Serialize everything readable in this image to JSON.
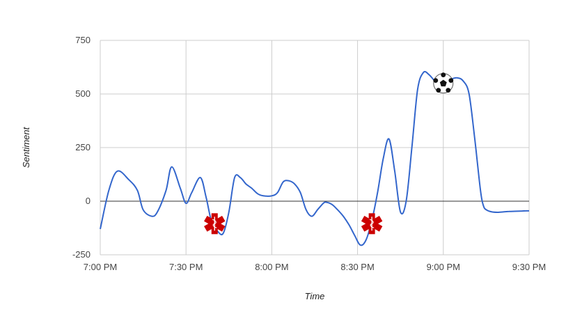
{
  "chart_data": {
    "type": "line",
    "xlabel": "Time",
    "ylabel": "Sentiment",
    "x_tick_labels": [
      "7:00 PM",
      "7:30 PM",
      "8:00 PM",
      "8:30 PM",
      "9:00 PM",
      "9:30 PM"
    ],
    "x_range_minutes": [
      0,
      150
    ],
    "x_tick_minutes": [
      0,
      30,
      60,
      90,
      120,
      150
    ],
    "y_tick_labels": [
      "750",
      "500",
      "250",
      "0",
      "-250"
    ],
    "y_ticks": [
      750,
      500,
      250,
      0,
      -250
    ],
    "ylim": [
      -250,
      750
    ],
    "grid": true,
    "series": [
      {
        "color": "#3366cc",
        "x_minutes": [
          0,
          3,
          6,
          10,
          13,
          15,
          18,
          20,
          23,
          25,
          28,
          30,
          32,
          35,
          37,
          39,
          41,
          43,
          45,
          47,
          49,
          51,
          53,
          55,
          57,
          60,
          62,
          64,
          66,
          68,
          70,
          72,
          74,
          76,
          78,
          79,
          81,
          83,
          85,
          87,
          89,
          91,
          93,
          95,
          97,
          99,
          101,
          103,
          105,
          107,
          109,
          111,
          113,
          115,
          117,
          118,
          119,
          120,
          121,
          122,
          123,
          125,
          127,
          129,
          131,
          133,
          134,
          135,
          137,
          139,
          141,
          143,
          145,
          147,
          149,
          150
        ],
        "values": [
          -130,
          50,
          140,
          100,
          50,
          -40,
          -70,
          -50,
          50,
          160,
          60,
          -10,
          40,
          110,
          20,
          -100,
          -140,
          -150,
          -50,
          110,
          110,
          80,
          60,
          35,
          25,
          25,
          40,
          90,
          95,
          80,
          40,
          -40,
          -70,
          -40,
          -10,
          -5,
          -15,
          -40,
          -70,
          -110,
          -160,
          -205,
          -180,
          -90,
          40,
          200,
          290,
          140,
          -50,
          0,
          250,
          520,
          600,
          590,
          560,
          550,
          545,
          540,
          545,
          555,
          570,
          575,
          560,
          500,
          290,
          50,
          -20,
          -40,
          -50,
          -52,
          -50,
          -48,
          -47,
          -46,
          -45,
          -45
        ]
      }
    ],
    "markers": [
      {
        "icon": "medical-star-of-life-icon",
        "x_minute": 40,
        "y": -105,
        "color": "#cc0000"
      },
      {
        "icon": "medical-star-of-life-icon",
        "x_minute": 95,
        "y": -105,
        "color": "#cc0000"
      },
      {
        "icon": "soccer-ball-icon",
        "x_minute": 120,
        "y": 550
      }
    ]
  }
}
